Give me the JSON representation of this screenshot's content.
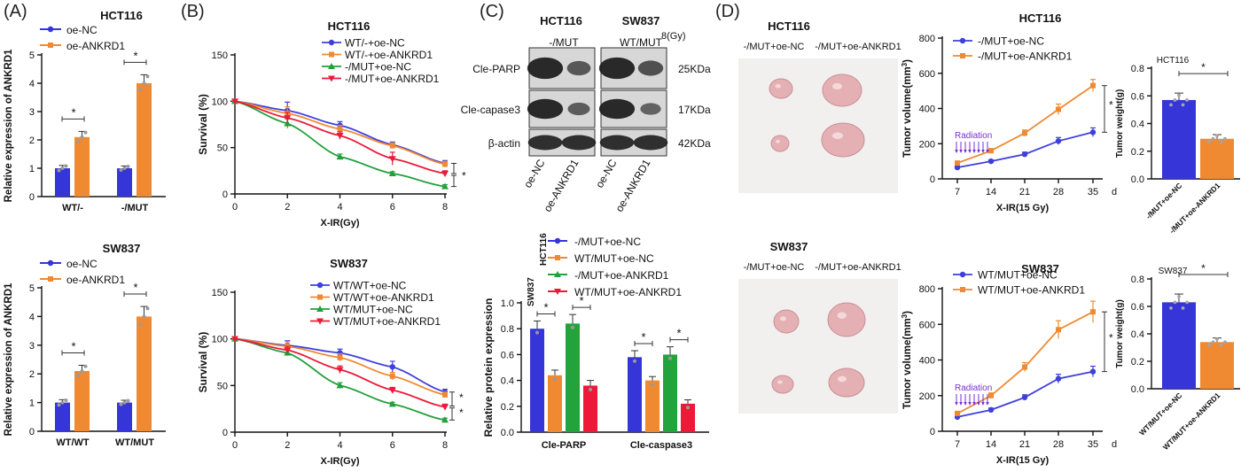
{
  "colors": {
    "blue": "#3f3fdc",
    "orange": "#ee8a33",
    "green": "#21a03c",
    "red": "#ea1a3a",
    "bar_blue": "#3535d8",
    "bar_orange": "#ef8a33",
    "bar_green": "#22a33c",
    "bar_red": "#ee1838",
    "blot_band": "#1a1a1a",
    "blot_bg": "#d7d7d7",
    "radiation": "#7a2fd0",
    "tissue": "#e5b0b4",
    "photo_bg": "#f1f0ee"
  },
  "panels": {
    "A": "(A)",
    "B": "(B)",
    "C": "(C)",
    "D": "(D)"
  },
  "western": {
    "col_titles": [
      "HCT116",
      "SW837"
    ],
    "col_sub": [
      "-/MUT",
      "WT/MUT"
    ],
    "dose": "8(Gy)",
    "rows": [
      "Cle-PARP",
      "Cle-capase3",
      "β-actin"
    ],
    "kda": [
      "25KDa",
      "17KDa",
      "42KDa"
    ],
    "lanes": [
      "oe-NC",
      "oe-ANKRD1",
      "oe-NC",
      "oe-ANKRD1"
    ],
    "band_strength": [
      [
        0.95,
        0.55,
        0.95,
        0.6
      ],
      [
        0.95,
        0.5,
        0.95,
        0.45
      ],
      [
        0.9,
        0.9,
        0.9,
        0.9
      ]
    ]
  },
  "photos": {
    "top": {
      "title": "HCT116",
      "labels": [
        "-/MUT+oe-NC",
        "-/MUT+oe-ANKRD1"
      ]
    },
    "bottom": {
      "title": "SW837",
      "labels": [
        "-/MUT+oe-NC",
        "-/MUT+oe-ANKRD1"
      ]
    }
  },
  "chart_data": [
    {
      "id": "A1",
      "type": "bar",
      "title": "HCT116",
      "ylabel": "Relative expression of ANKRD1",
      "categories": [
        "WT/-",
        "-/MUT"
      ],
      "ylim": [
        0,
        5
      ],
      "yticks": [
        0,
        1,
        2,
        3,
        4,
        5
      ],
      "series": [
        {
          "name": "oe-NC",
          "values": [
            1.0,
            1.0
          ],
          "errors": [
            0.1,
            0.08
          ]
        },
        {
          "name": "oe-ANKRD1",
          "values": [
            2.1,
            4.0
          ],
          "errors": [
            0.2,
            0.3
          ]
        }
      ],
      "annotations": [
        "*",
        "*"
      ]
    },
    {
      "id": "A2",
      "type": "bar",
      "title": "SW837",
      "ylabel": "Relative expression of ANKRD1",
      "categories": [
        "WT/WT",
        "WT/MUT"
      ],
      "ylim": [
        0,
        5
      ],
      "yticks": [
        0,
        1,
        2,
        3,
        4,
        5
      ],
      "series": [
        {
          "name": "oe-NC",
          "values": [
            1.0,
            1.0
          ],
          "errors": [
            0.1,
            0.08
          ]
        },
        {
          "name": "oe-ANKRD1",
          "values": [
            2.1,
            4.0
          ],
          "errors": [
            0.2,
            0.35
          ]
        }
      ],
      "annotations": [
        "*",
        "*"
      ]
    },
    {
      "id": "B1",
      "type": "line",
      "title": "HCT116",
      "xlabel": "X-IR(Gy)",
      "ylabel": "Survival (%)",
      "x": [
        0,
        2,
        4,
        6,
        8
      ],
      "xlim": [
        0,
        8
      ],
      "ylim": [
        0,
        150
      ],
      "yticks": [
        0,
        50,
        100,
        150
      ],
      "series": [
        {
          "name": "WT/-+oe-NC",
          "values": [
            100,
            90,
            74,
            53,
            33
          ],
          "errors": [
            0,
            9,
            4,
            3,
            3
          ]
        },
        {
          "name": "WT/-+oe-ANKRD1",
          "values": [
            100,
            87,
            70,
            52,
            32
          ],
          "errors": [
            0,
            7,
            4,
            3,
            3
          ]
        },
        {
          "name": "-/MUT+oe-NC",
          "values": [
            100,
            76,
            40,
            22,
            8
          ],
          "errors": [
            0,
            5,
            3,
            2,
            2
          ]
        },
        {
          "name": "-/MUT+oe-ANKRD1",
          "values": [
            100,
            82,
            63,
            38,
            22
          ],
          "errors": [
            0,
            6,
            4,
            7,
            3
          ]
        }
      ],
      "annotations": [
        "*"
      ]
    },
    {
      "id": "B2",
      "type": "line",
      "title": "SW837",
      "xlabel": "X-IR(Gy)",
      "ylabel": "Survival (%)",
      "x": [
        0,
        2,
        4,
        6,
        8
      ],
      "xlim": [
        0,
        8
      ],
      "ylim": [
        0,
        150
      ],
      "yticks": [
        0,
        50,
        100,
        150
      ],
      "series": [
        {
          "name": "WT/WT+oe-NC",
          "values": [
            100,
            93,
            85,
            70,
            43
          ],
          "errors": [
            0,
            5,
            4,
            6,
            3
          ]
        },
        {
          "name": "WT/WT+oe-ANKRD1",
          "values": [
            100,
            92,
            80,
            60,
            40
          ],
          "errors": [
            0,
            5,
            4,
            4,
            3
          ]
        },
        {
          "name": "WT/MUT+oe-NC",
          "values": [
            100,
            85,
            50,
            30,
            13
          ],
          "errors": [
            0,
            3,
            3,
            2,
            2
          ]
        },
        {
          "name": "WT/MUT+oe-ANKRD1",
          "values": [
            100,
            88,
            67,
            45,
            27
          ],
          "errors": [
            0,
            4,
            4,
            3,
            3
          ]
        }
      ],
      "annotations": [
        "*",
        "*"
      ]
    },
    {
      "id": "C",
      "type": "bar",
      "ylabel": "Relative  protein expression",
      "categories": [
        "Cle-PARP",
        "Cle-caspase3"
      ],
      "ylim": [
        0,
        1.0
      ],
      "yticks": [
        0.0,
        0.2,
        0.4,
        0.6,
        0.8,
        1.0
      ],
      "side_labels": [
        "HCT116",
        "SW837"
      ],
      "series": [
        {
          "name": "-/MUT+oe-NC",
          "values": [
            0.8,
            0.58
          ],
          "errors": [
            0.06,
            0.05
          ]
        },
        {
          "name": "WT/MUT+oe-NC",
          "values": [
            0.44,
            0.4
          ],
          "errors": [
            0.04,
            0.03
          ]
        },
        {
          "name": "-/MUT+oe-ANKRD1",
          "values": [
            0.84,
            0.6
          ],
          "errors": [
            0.07,
            0.06
          ]
        },
        {
          "name": "WT/MUT+oe-ANKRD1",
          "values": [
            0.36,
            0.22
          ],
          "errors": [
            0.04,
            0.03
          ]
        }
      ],
      "annotations": [
        "*",
        "*",
        "*",
        "*"
      ]
    },
    {
      "id": "D1",
      "type": "line",
      "title": "HCT116",
      "xlabel": "X-IR(15 Gy)",
      "ylabel": "Tumor volume(mm",
      "ylabel_sup": "3",
      "ylabel_end": ")",
      "x_unit": "d",
      "x": [
        7,
        14,
        21,
        28,
        35
      ],
      "ylim": [
        0,
        800
      ],
      "yticks": [
        0,
        200,
        400,
        600,
        800
      ],
      "series": [
        {
          "name": "-/MUT+oe-NC",
          "values": [
            65,
            100,
            140,
            215,
            265
          ],
          "errors": [
            8,
            8,
            12,
            20,
            25
          ]
        },
        {
          "name": "-/MUT+oe-ANKRD1",
          "values": [
            90,
            160,
            260,
            395,
            530
          ],
          "errors": [
            10,
            12,
            18,
            30,
            35
          ]
        }
      ],
      "radiation": "Radiation",
      "annotations": [
        "*"
      ]
    },
    {
      "id": "D2",
      "type": "line",
      "title": "SW837",
      "xlabel": "X-IR(15 Gy)",
      "ylabel": "Tumor volume(mm",
      "ylabel_sup": "3",
      "ylabel_end": ")",
      "x_unit": "d",
      "x": [
        7,
        14,
        21,
        28,
        35
      ],
      "ylim": [
        0,
        800
      ],
      "yticks": [
        0,
        200,
        400,
        600,
        800
      ],
      "series": [
        {
          "name": "WT/MUT+oe-NC",
          "values": [
            80,
            120,
            190,
            295,
            335
          ],
          "errors": [
            8,
            10,
            15,
            25,
            30
          ]
        },
        {
          "name": "WT/MUT+oe-ANKRD1",
          "values": [
            100,
            200,
            360,
            570,
            670
          ],
          "errors": [
            10,
            15,
            25,
            50,
            60
          ]
        }
      ],
      "radiation": "Radiation",
      "annotations": [
        "*"
      ]
    },
    {
      "id": "D3",
      "type": "bar",
      "title": "HCT116",
      "ylabel": "Tumor weight(g)",
      "categories": [
        "-/MUT+oe-NC",
        "-/MUT+oe-ANKRD1"
      ],
      "ylim": [
        0,
        0.8
      ],
      "yticks": [
        0.0,
        0.2,
        0.4,
        0.6,
        0.8
      ],
      "values": [
        0.57,
        0.29
      ],
      "errors": [
        0.05,
        0.03
      ],
      "annotations": [
        "*"
      ]
    },
    {
      "id": "D4",
      "type": "bar",
      "title": "SW837",
      "ylabel": "Tumor weight(g)",
      "categories": [
        "WT/MUT+oe-NC",
        "WT/MUT+oe-ANKRD1"
      ],
      "ylim": [
        0,
        0.8
      ],
      "yticks": [
        0.0,
        0.2,
        0.4,
        0.6,
        0.8
      ],
      "values": [
        0.63,
        0.34
      ],
      "errors": [
        0.06,
        0.03
      ],
      "annotations": [
        "*"
      ]
    }
  ]
}
